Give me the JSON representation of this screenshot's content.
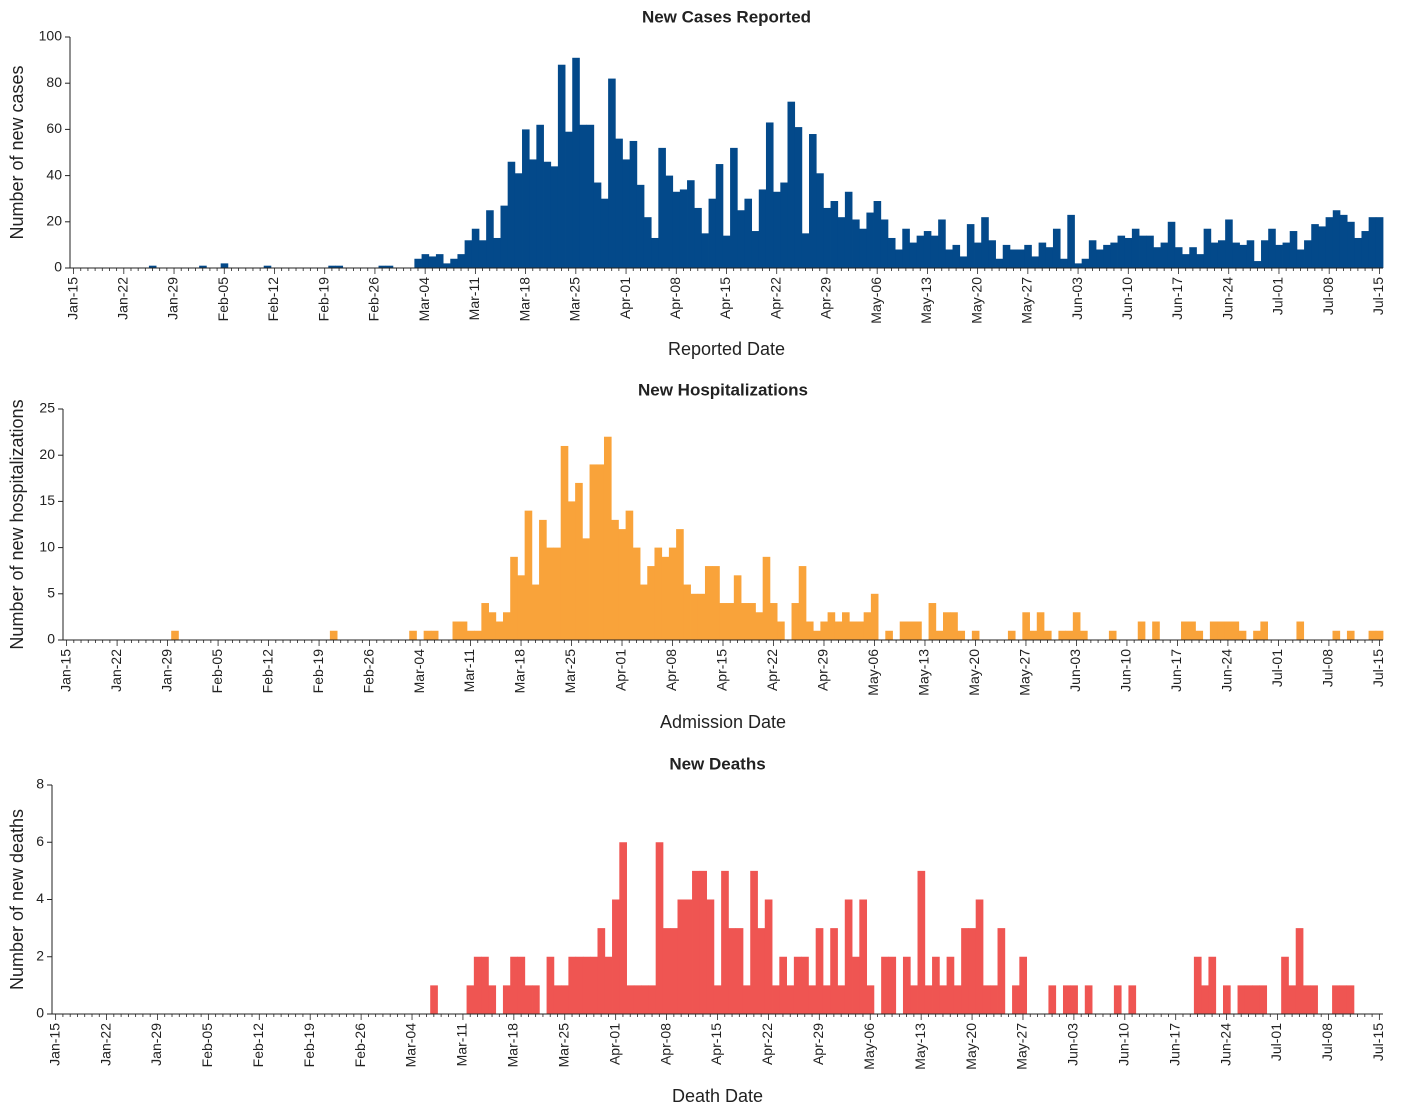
{
  "chart_data": [
    {
      "type": "bar",
      "title": "New Cases Reported",
      "x_label": "Reported Date",
      "y_label": "Number of new cases",
      "color": "#03498a",
      "categories": [
        "Jan-15",
        null,
        null,
        null,
        null,
        null,
        null,
        "Jan-22",
        null,
        null,
        null,
        null,
        null,
        null,
        "Jan-29",
        null,
        null,
        null,
        null,
        null,
        null,
        "Feb-05",
        null,
        null,
        null,
        null,
        null,
        null,
        "Feb-12",
        null,
        null,
        null,
        null,
        null,
        null,
        "Feb-19",
        null,
        null,
        null,
        null,
        null,
        null,
        "Feb-26",
        null,
        null,
        null,
        null,
        null,
        null,
        "Mar-04",
        null,
        null,
        null,
        null,
        null,
        null,
        "Mar-11",
        null,
        null,
        null,
        null,
        null,
        null,
        "Mar-18",
        null,
        null,
        null,
        null,
        null,
        null,
        "Mar-25",
        null,
        null,
        null,
        null,
        null,
        null,
        "Apr-01",
        null,
        null,
        null,
        null,
        null,
        null,
        "Apr-08",
        null,
        null,
        null,
        null,
        null,
        null,
        "Apr-15",
        null,
        null,
        null,
        null,
        null,
        null,
        "Apr-22",
        null,
        null,
        null,
        null,
        null,
        null,
        "Apr-29",
        null,
        null,
        null,
        null,
        null,
        null,
        "May-06",
        null,
        null,
        null,
        null,
        null,
        null,
        "May-13",
        null,
        null,
        null,
        null,
        null,
        null,
        "May-20",
        null,
        null,
        null,
        null,
        null,
        null,
        "May-27",
        null,
        null,
        null,
        null,
        null,
        null,
        "Jun-03",
        null,
        null,
        null,
        null,
        null,
        null,
        "Jun-10",
        null,
        null,
        null,
        null,
        null,
        null,
        "Jun-17",
        null,
        null,
        null,
        null,
        null,
        null,
        "Jun-24",
        null,
        null,
        null,
        null,
        null,
        null,
        "Jul-01",
        null,
        null,
        null,
        null,
        null,
        null,
        "Jul-08",
        null,
        null,
        null,
        null,
        null,
        null,
        "Jul-15"
      ],
      "values": [
        0,
        0,
        0,
        0,
        0,
        0,
        0,
        0,
        0,
        0,
        0,
        1,
        0,
        0,
        0,
        0,
        0,
        0,
        1,
        0,
        0,
        2,
        0,
        0,
        0,
        0,
        0,
        1,
        0,
        0,
        0,
        0,
        0,
        0,
        0,
        0,
        1,
        1,
        0,
        0,
        0,
        0,
        0,
        1,
        1,
        0,
        0,
        0,
        4,
        6,
        5,
        6,
        2,
        4,
        6,
        12,
        17,
        12,
        25,
        13,
        27,
        46,
        41,
        60,
        47,
        62,
        46,
        44,
        88,
        59,
        91,
        62,
        62,
        37,
        30,
        82,
        56,
        47,
        55,
        36,
        22,
        13,
        52,
        40,
        33,
        34,
        38,
        26,
        15,
        30,
        45,
        14,
        52,
        25,
        30,
        16,
        34,
        63,
        33,
        37,
        72,
        61,
        15,
        58,
        41,
        26,
        29,
        22,
        33,
        21,
        17,
        24,
        29,
        21,
        13,
        8,
        17,
        11,
        14,
        16,
        14,
        21,
        8,
        10,
        5,
        19,
        11,
        22,
        12,
        4,
        10,
        8,
        8,
        10,
        5,
        11,
        9,
        17,
        4,
        23,
        2,
        4,
        12,
        8,
        10,
        11,
        14,
        13,
        17,
        14,
        14,
        9,
        11,
        20,
        9,
        6,
        9,
        6,
        17,
        11,
        12,
        21,
        11,
        10,
        12,
        3,
        12,
        17,
        10,
        11,
        16,
        8,
        12,
        19,
        18,
        22,
        25,
        23,
        20,
        13,
        16,
        22,
        22
      ],
      "ylim": [
        0,
        100
      ],
      "yticks": [
        0,
        20,
        40,
        60,
        80,
        100
      ]
    },
    {
      "type": "bar",
      "title": "New Hospitalizations",
      "x_label": "Admission Date",
      "y_label": "Number of new hospitalizations",
      "color": "#f9a33a",
      "categories": [
        "Jan-15",
        null,
        null,
        null,
        null,
        null,
        null,
        "Jan-22",
        null,
        null,
        null,
        null,
        null,
        null,
        "Jan-29",
        null,
        null,
        null,
        null,
        null,
        null,
        "Feb-05",
        null,
        null,
        null,
        null,
        null,
        null,
        "Feb-12",
        null,
        null,
        null,
        null,
        null,
        null,
        "Feb-19",
        null,
        null,
        null,
        null,
        null,
        null,
        "Feb-26",
        null,
        null,
        null,
        null,
        null,
        null,
        "Mar-04",
        null,
        null,
        null,
        null,
        null,
        null,
        "Mar-11",
        null,
        null,
        null,
        null,
        null,
        null,
        "Mar-18",
        null,
        null,
        null,
        null,
        null,
        null,
        "Mar-25",
        null,
        null,
        null,
        null,
        null,
        null,
        "Apr-01",
        null,
        null,
        null,
        null,
        null,
        null,
        "Apr-08",
        null,
        null,
        null,
        null,
        null,
        null,
        "Apr-15",
        null,
        null,
        null,
        null,
        null,
        null,
        "Apr-22",
        null,
        null,
        null,
        null,
        null,
        null,
        "Apr-29",
        null,
        null,
        null,
        null,
        null,
        null,
        "May-06",
        null,
        null,
        null,
        null,
        null,
        null,
        "May-13",
        null,
        null,
        null,
        null,
        null,
        null,
        "May-20",
        null,
        null,
        null,
        null,
        null,
        null,
        "May-27",
        null,
        null,
        null,
        null,
        null,
        null,
        "Jun-03",
        null,
        null,
        null,
        null,
        null,
        null,
        "Jun-10",
        null,
        null,
        null,
        null,
        null,
        null,
        "Jun-17",
        null,
        null,
        null,
        null,
        null,
        null,
        "Jun-24",
        null,
        null,
        null,
        null,
        null,
        null,
        "Jul-01",
        null,
        null,
        null,
        null,
        null,
        null,
        "Jul-08",
        null,
        null,
        null,
        null,
        null,
        null,
        "Jul-15"
      ],
      "values": [
        0,
        0,
        0,
        0,
        0,
        0,
        0,
        0,
        0,
        0,
        0,
        0,
        0,
        0,
        0,
        1,
        0,
        0,
        0,
        0,
        0,
        0,
        0,
        0,
        0,
        0,
        0,
        0,
        0,
        0,
        0,
        0,
        0,
        0,
        0,
        0,
        0,
        1,
        0,
        0,
        0,
        0,
        0,
        0,
        0,
        0,
        0,
        0,
        1,
        0,
        1,
        1,
        0,
        0,
        2,
        2,
        1,
        1,
        4,
        3,
        2,
        3,
        9,
        7,
        14,
        6,
        13,
        10,
        10,
        21,
        15,
        17,
        11,
        19,
        19,
        22,
        13,
        12,
        14,
        10,
        6,
        8,
        10,
        9,
        10,
        12,
        6,
        5,
        5,
        8,
        8,
        4,
        4,
        7,
        4,
        4,
        3,
        9,
        4,
        2,
        0,
        4,
        8,
        2,
        1,
        2,
        3,
        2,
        3,
        2,
        2,
        3,
        5,
        0,
        1,
        0,
        2,
        2,
        2,
        0,
        4,
        1,
        3,
        3,
        1,
        0,
        1,
        0,
        0,
        0,
        0,
        1,
        0,
        3,
        1,
        3,
        1,
        0,
        1,
        1,
        3,
        1,
        0,
        0,
        0,
        1,
        0,
        0,
        0,
        2,
        0,
        2,
        0,
        0,
        0,
        2,
        2,
        1,
        0,
        2,
        2,
        2,
        2,
        1,
        0,
        1,
        2,
        0,
        0,
        0,
        0,
        2,
        0,
        0,
        0,
        0,
        1,
        0,
        1,
        0,
        0,
        1,
        1
      ],
      "ylim": [
        0,
        25
      ],
      "yticks": [
        0,
        5,
        10,
        15,
        20,
        25
      ]
    },
    {
      "type": "bar",
      "title": "New Deaths",
      "x_label": "Death Date",
      "y_label": "Number of new deaths",
      "color": "#ef5552",
      "categories": [
        "Jan-15",
        null,
        null,
        null,
        null,
        null,
        null,
        "Jan-22",
        null,
        null,
        null,
        null,
        null,
        null,
        "Jan-29",
        null,
        null,
        null,
        null,
        null,
        null,
        "Feb-05",
        null,
        null,
        null,
        null,
        null,
        null,
        "Feb-12",
        null,
        null,
        null,
        null,
        null,
        null,
        "Feb-19",
        null,
        null,
        null,
        null,
        null,
        null,
        "Feb-26",
        null,
        null,
        null,
        null,
        null,
        null,
        "Mar-04",
        null,
        null,
        null,
        null,
        null,
        null,
        "Mar-11",
        null,
        null,
        null,
        null,
        null,
        null,
        "Mar-18",
        null,
        null,
        null,
        null,
        null,
        null,
        "Mar-25",
        null,
        null,
        null,
        null,
        null,
        null,
        "Apr-01",
        null,
        null,
        null,
        null,
        null,
        null,
        "Apr-08",
        null,
        null,
        null,
        null,
        null,
        null,
        "Apr-15",
        null,
        null,
        null,
        null,
        null,
        null,
        "Apr-22",
        null,
        null,
        null,
        null,
        null,
        null,
        "Apr-29",
        null,
        null,
        null,
        null,
        null,
        null,
        "May-06",
        null,
        null,
        null,
        null,
        null,
        null,
        "May-13",
        null,
        null,
        null,
        null,
        null,
        null,
        "May-20",
        null,
        null,
        null,
        null,
        null,
        null,
        "May-27",
        null,
        null,
        null,
        null,
        null,
        null,
        "Jun-03",
        null,
        null,
        null,
        null,
        null,
        null,
        "Jun-10",
        null,
        null,
        null,
        null,
        null,
        null,
        "Jun-17",
        null,
        null,
        null,
        null,
        null,
        null,
        "Jun-24",
        null,
        null,
        null,
        null,
        null,
        null,
        "Jul-01",
        null,
        null,
        null,
        null,
        null,
        null,
        "Jul-08",
        null,
        null,
        null,
        null,
        null,
        null,
        "Jul-15"
      ],
      "values": [
        0,
        0,
        0,
        0,
        0,
        0,
        0,
        0,
        0,
        0,
        0,
        0,
        0,
        0,
        0,
        0,
        0,
        0,
        0,
        0,
        0,
        0,
        0,
        0,
        0,
        0,
        0,
        0,
        0,
        0,
        0,
        0,
        0,
        0,
        0,
        0,
        0,
        0,
        0,
        0,
        0,
        0,
        0,
        0,
        0,
        0,
        0,
        0,
        0,
        0,
        0,
        0,
        1,
        0,
        0,
        0,
        0,
        1,
        2,
        2,
        1,
        0,
        1,
        2,
        2,
        1,
        1,
        0,
        2,
        1,
        1,
        2,
        2,
        2,
        2,
        3,
        2,
        4,
        6,
        1,
        1,
        1,
        1,
        6,
        3,
        3,
        4,
        4,
        5,
        5,
        4,
        1,
        5,
        3,
        3,
        1,
        5,
        3,
        4,
        1,
        2,
        1,
        2,
        2,
        1,
        3,
        1,
        3,
        1,
        4,
        2,
        4,
        1,
        0,
        2,
        2,
        0,
        2,
        1,
        5,
        1,
        2,
        1,
        2,
        1,
        3,
        3,
        4,
        1,
        1,
        3,
        0,
        1,
        2,
        0,
        0,
        0,
        1,
        0,
        1,
        1,
        0,
        1,
        0,
        0,
        0,
        1,
        0,
        1,
        0,
        0,
        0,
        0,
        0,
        0,
        0,
        0,
        2,
        1,
        2,
        0,
        1,
        0,
        1,
        1,
        1,
        1,
        0,
        0,
        2,
        1,
        3,
        1,
        1,
        0,
        0,
        1,
        1,
        1,
        0,
        0,
        0,
        0
      ],
      "ylim": [
        0,
        8
      ],
      "yticks": [
        0,
        2,
        4,
        6,
        8
      ]
    }
  ]
}
